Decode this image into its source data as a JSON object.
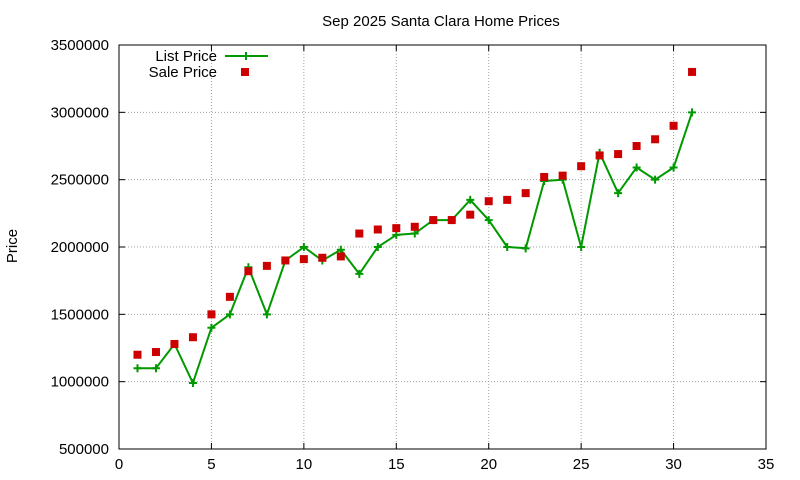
{
  "chart_data": {
    "type": "line",
    "title": "Sep 2025 Santa Clara Home Prices",
    "xlabel": "",
    "ylabel": "Price",
    "xlim": [
      0,
      35
    ],
    "ylim": [
      500000,
      3500000
    ],
    "xticks": [
      0,
      5,
      10,
      15,
      20,
      25,
      30,
      35
    ],
    "yticks": [
      500000,
      1000000,
      1500000,
      2000000,
      2500000,
      3000000,
      3500000
    ],
    "grid": true,
    "legend_position": "top-left",
    "series": [
      {
        "name": "List Price",
        "style": "line-plus",
        "color": "#009900",
        "x": [
          1,
          2,
          3,
          4,
          5,
          6,
          7,
          8,
          9,
          10,
          11,
          12,
          13,
          14,
          15,
          16,
          17,
          18,
          19,
          20,
          21,
          22,
          23,
          24,
          25,
          26,
          27,
          28,
          29,
          30,
          31
        ],
        "y": [
          1100000,
          1100000,
          1280000,
          990000,
          1400000,
          1500000,
          1850000,
          1500000,
          1900000,
          2000000,
          1900000,
          1980000,
          1800000,
          2000000,
          2090000,
          2100000,
          2200000,
          2200000,
          2350000,
          2200000,
          2000000,
          1990000,
          2490000,
          2500000,
          2000000,
          2700000,
          2400000,
          2590000,
          2500000,
          2590000,
          3000000
        ]
      },
      {
        "name": "Sale Price",
        "style": "square",
        "color": "#cc0000",
        "x": [
          1,
          2,
          3,
          4,
          5,
          6,
          7,
          8,
          9,
          10,
          11,
          12,
          13,
          14,
          15,
          16,
          17,
          18,
          19,
          20,
          21,
          22,
          23,
          24,
          25,
          26,
          27,
          28,
          29,
          30,
          31
        ],
        "y": [
          1200000,
          1220000,
          1280000,
          1330000,
          1500000,
          1630000,
          1820000,
          1860000,
          1900000,
          1910000,
          1920000,
          1930000,
          2100000,
          2130000,
          2140000,
          2150000,
          2200000,
          2200000,
          2240000,
          2340000,
          2350000,
          2400000,
          2520000,
          2530000,
          2600000,
          2680000,
          2690000,
          2750000,
          2800000,
          2900000,
          3300000
        ]
      }
    ]
  }
}
